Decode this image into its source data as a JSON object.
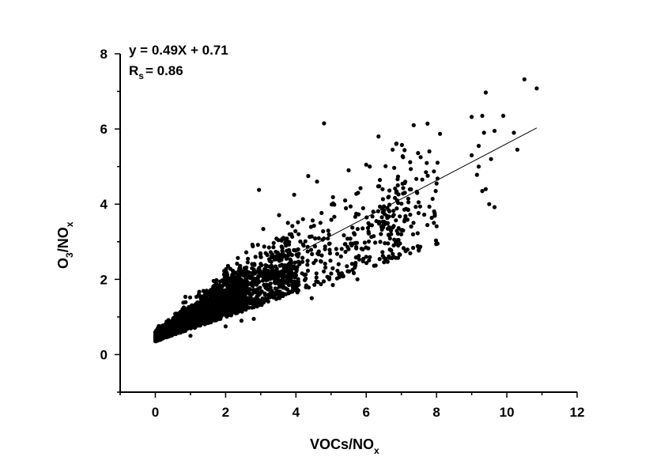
{
  "chart_data": {
    "type": "scatter",
    "xlabel": {
      "main": "VOCs/NO",
      "sub": "x"
    },
    "ylabel": {
      "pre": "O",
      "sub1": "3",
      "mid": "/NO",
      "sub2": "x"
    },
    "xlim": [
      -1,
      12
    ],
    "ylim": [
      -1,
      8
    ],
    "xticks": [
      0,
      2,
      4,
      6,
      8,
      10,
      12
    ],
    "yticks": [
      0,
      2,
      4,
      6,
      8
    ],
    "xtick_labels": [
      "0",
      "2",
      "4",
      "6",
      "8",
      "10",
      "12"
    ],
    "ytick_labels": [
      "0",
      "2",
      "4",
      "6",
      "8"
    ],
    "equation": "y = 0.49X + 0.71",
    "correlation": {
      "symbol": "R",
      "sub": "s",
      "text": "= 0.86"
    },
    "fit_line": {
      "slope": 0.49,
      "intercept": 0.71,
      "x_range": [
        4.2,
        10.85
      ]
    },
    "marker_color": "#000000",
    "point_count_estimate": 2500,
    "highlighted_points": [
      [
        10.5,
        7.32
      ],
      [
        10.85,
        7.08
      ],
      [
        9.4,
        6.97
      ],
      [
        9.0,
        6.32
      ],
      [
        9.3,
        6.35
      ],
      [
        9.35,
        5.9
      ],
      [
        9.2,
        5.55
      ],
      [
        9.0,
        5.3
      ],
      [
        9.9,
        6.35
      ],
      [
        9.65,
        5.95
      ],
      [
        10.2,
        5.9
      ],
      [
        10.3,
        5.45
      ],
      [
        9.2,
        5.0
      ],
      [
        9.55,
        5.2
      ],
      [
        9.3,
        4.35
      ],
      [
        9.4,
        4.4
      ],
      [
        9.5,
        4.0
      ],
      [
        9.65,
        3.92
      ],
      [
        9.15,
        4.78
      ],
      [
        8.1,
        5.87
      ],
      [
        8.0,
        4.55
      ],
      [
        7.95,
        3.75
      ],
      [
        7.55,
        5.25
      ],
      [
        7.7,
        4.85
      ],
      [
        7.45,
        4.3
      ],
      [
        7.5,
        2.8
      ],
      [
        7.2,
        4.05
      ],
      [
        7.05,
        5.25
      ],
      [
        7.35,
        6.1
      ],
      [
        6.35,
        5.8
      ],
      [
        6.75,
        5.45
      ],
      [
        6.1,
        5.0
      ],
      [
        6.2,
        3.8
      ],
      [
        6.6,
        3.9
      ],
      [
        6.9,
        4.5
      ],
      [
        7.05,
        3.3
      ],
      [
        4.8,
        6.15
      ],
      [
        6.0,
        5.05
      ],
      [
        5.5,
        4.9
      ],
      [
        2.95,
        4.38
      ],
      [
        5.4,
        4.1
      ],
      [
        4.35,
        4.75
      ],
      [
        4.6,
        4.6
      ],
      [
        3.95,
        4.25
      ],
      [
        4.2,
        3.6
      ],
      [
        4.45,
        1.5
      ],
      [
        3.8,
        1.85
      ],
      [
        6.0,
        2.6
      ],
      [
        5.75,
        2.0
      ],
      [
        5.45,
        2.35
      ],
      [
        4.95,
        2.05
      ],
      [
        5.05,
        1.85
      ],
      [
        2.8,
        0.95
      ],
      [
        2.45,
        0.9
      ],
      [
        2.0,
        0.75
      ],
      [
        1.0,
        0.5
      ]
    ]
  }
}
